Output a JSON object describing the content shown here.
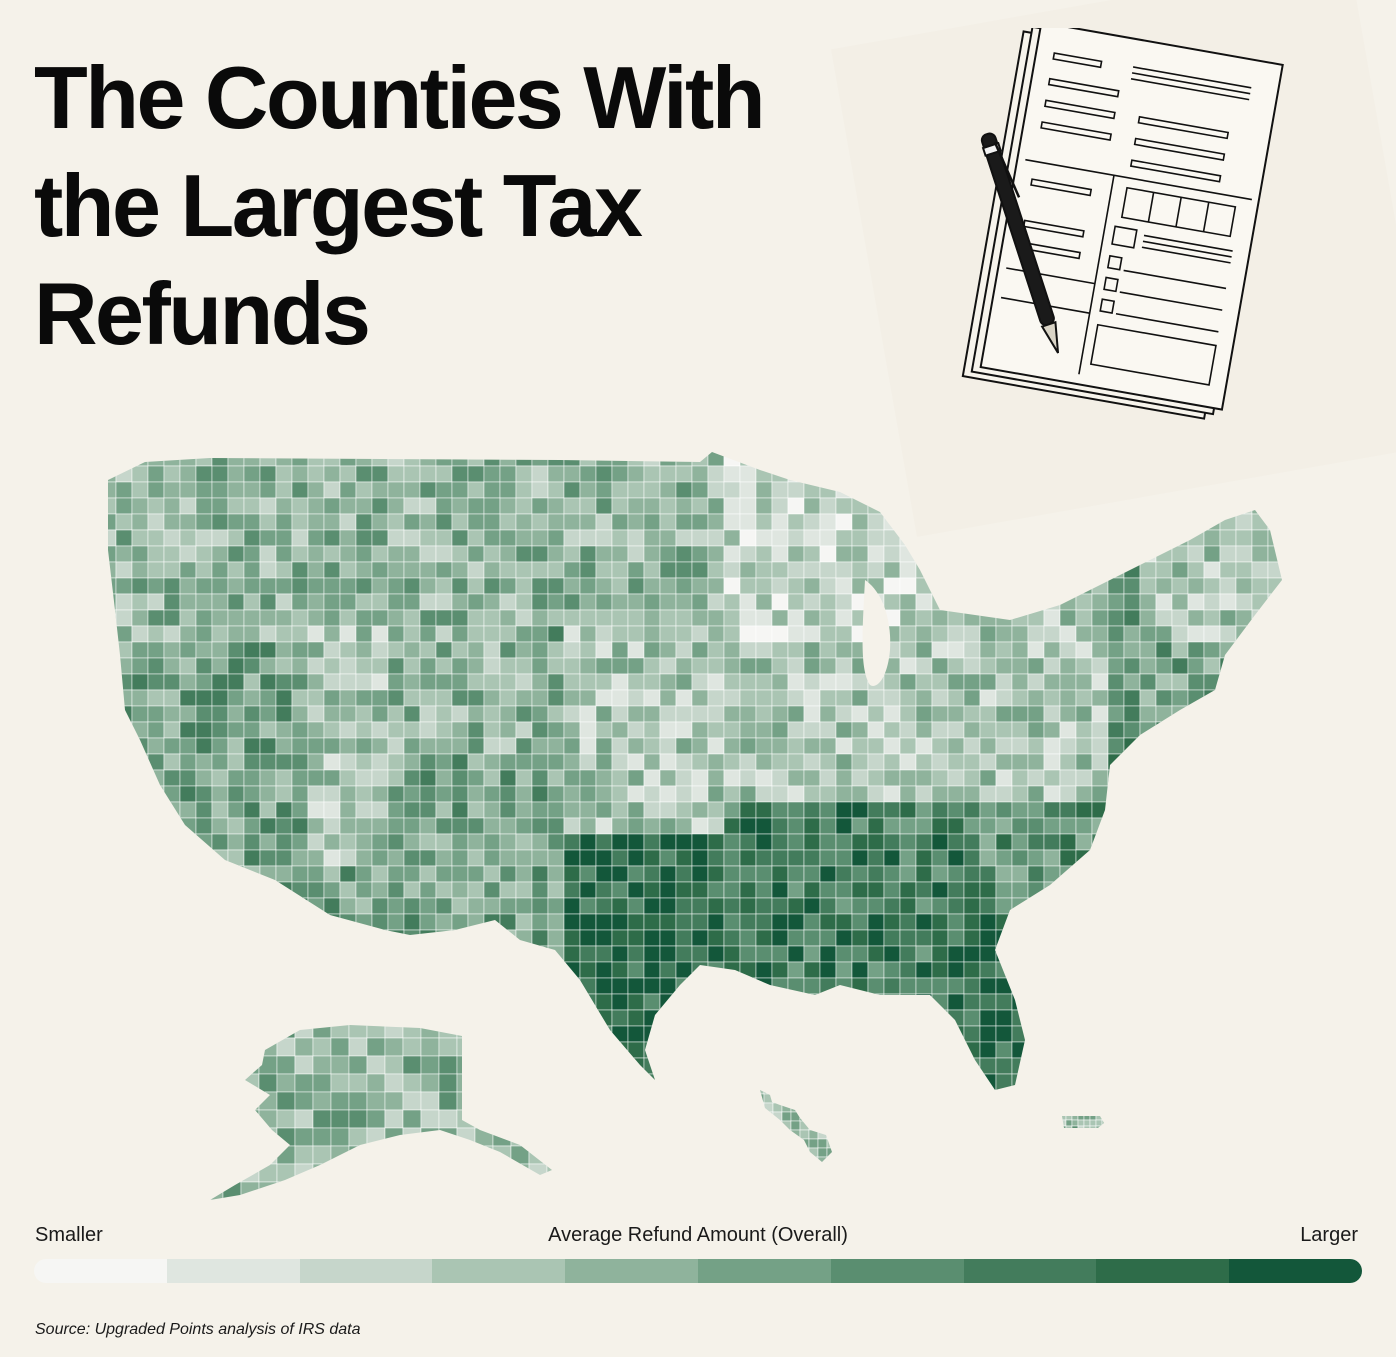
{
  "title": "The Counties With the Largest Tax Refunds",
  "legend": {
    "low_label": "Smaller",
    "title": "Average Refund Amount (Overall)",
    "high_label": "Larger",
    "bins": [
      "#f6f6f4",
      "#dfe6e0",
      "#c6d6cb",
      "#aac5b3",
      "#8fb39c",
      "#74a186",
      "#5a8e70",
      "#437c5c",
      "#2e6c49",
      "#13573a"
    ]
  },
  "source": "Source: Upgraded Points analysis of IRS data",
  "illustration": "tax-form-with-pen-icon",
  "colors": {
    "background": "#f5f2ea",
    "county_border": "#ffffff",
    "darkest": "#13573a"
  },
  "map_regions": [
    {
      "name": "pacific-northwest",
      "level": 4
    },
    {
      "name": "california",
      "level": 5
    },
    {
      "name": "nevada",
      "level": 3
    },
    {
      "name": "mountain-west",
      "level": 4
    },
    {
      "name": "southwest",
      "level": 5
    },
    {
      "name": "northern-plains",
      "level": 4
    },
    {
      "name": "central-plains",
      "level": 3
    },
    {
      "name": "texas",
      "level": 8
    },
    {
      "name": "upper-midwest",
      "level": 2
    },
    {
      "name": "midwest",
      "level": 3
    },
    {
      "name": "deep-south",
      "level": 7
    },
    {
      "name": "appalachia",
      "level": 3
    },
    {
      "name": "southeast",
      "level": 6
    },
    {
      "name": "florida",
      "level": 8
    },
    {
      "name": "mid-atlantic",
      "level": 5
    },
    {
      "name": "new-england",
      "level": 3
    },
    {
      "name": "alaska",
      "level": 4
    },
    {
      "name": "hawaii",
      "level": 4
    },
    {
      "name": "puerto-rico",
      "level": 4
    }
  ]
}
